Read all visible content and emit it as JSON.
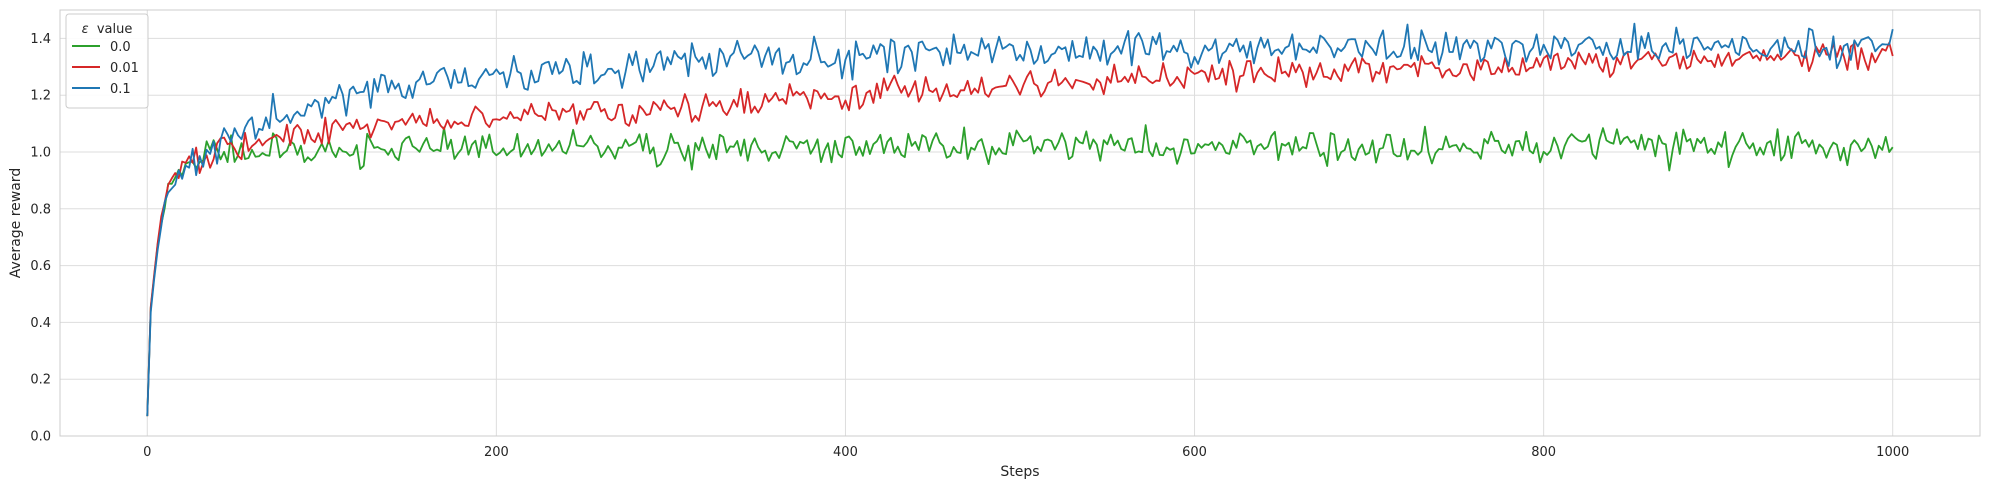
{
  "chart_data": {
    "type": "line",
    "title": "",
    "xlabel": "Steps",
    "ylabel": "Average reward",
    "xlim": [
      -50,
      1050
    ],
    "ylim": [
      0.0,
      1.5
    ],
    "x_ticks": [
      0,
      200,
      400,
      600,
      800,
      1000
    ],
    "x_tick_labels": [
      "0",
      "200",
      "400",
      "600",
      "800",
      "1000"
    ],
    "y_ticks": [
      0.0,
      0.2,
      0.4,
      0.6,
      0.8,
      1.0,
      1.2,
      1.4
    ],
    "y_tick_labels": [
      "0.0",
      "0.2",
      "0.4",
      "0.6",
      "0.8",
      "1.0",
      "1.2",
      "1.4"
    ],
    "grid": true,
    "legend": {
      "title_symbol": "ε",
      "title_text": "value",
      "placement": "top-left"
    },
    "x_range": [
      0,
      1000
    ],
    "series": [
      {
        "name": "0.0",
        "color": "#2ca02c",
        "points": [
          [
            0,
            0.07
          ],
          [
            2,
            0.45
          ],
          [
            5,
            0.62
          ],
          [
            8,
            0.76
          ],
          [
            12,
            0.86
          ],
          [
            16,
            0.92
          ],
          [
            20,
            0.95
          ],
          [
            30,
            0.98
          ],
          [
            40,
            1.0
          ],
          [
            60,
            1.0
          ],
          [
            100,
            1.01
          ],
          [
            200,
            1.01
          ],
          [
            400,
            1.02
          ],
          [
            600,
            1.02
          ],
          [
            800,
            1.02
          ],
          [
            1000,
            1.02
          ]
        ],
        "noise_amplitude": 0.03
      },
      {
        "name": "0.01",
        "color": "#d62728",
        "points": [
          [
            0,
            0.07
          ],
          [
            2,
            0.45
          ],
          [
            5,
            0.62
          ],
          [
            8,
            0.78
          ],
          [
            12,
            0.87
          ],
          [
            16,
            0.92
          ],
          [
            20,
            0.95
          ],
          [
            30,
            0.98
          ],
          [
            40,
            1.0
          ],
          [
            60,
            1.03
          ],
          [
            100,
            1.07
          ],
          [
            150,
            1.1
          ],
          [
            200,
            1.12
          ],
          [
            300,
            1.16
          ],
          [
            400,
            1.2
          ],
          [
            500,
            1.24
          ],
          [
            600,
            1.27
          ],
          [
            700,
            1.29
          ],
          [
            800,
            1.31
          ],
          [
            900,
            1.33
          ],
          [
            1000,
            1.34
          ]
        ],
        "noise_amplitude": 0.025
      },
      {
        "name": "0.1",
        "color": "#1f77b4",
        "points": [
          [
            0,
            0.07
          ],
          [
            2,
            0.44
          ],
          [
            5,
            0.6
          ],
          [
            8,
            0.74
          ],
          [
            12,
            0.85
          ],
          [
            16,
            0.9
          ],
          [
            20,
            0.93
          ],
          [
            30,
            0.98
          ],
          [
            40,
            1.02
          ],
          [
            60,
            1.09
          ],
          [
            80,
            1.14
          ],
          [
            100,
            1.18
          ],
          [
            150,
            1.24
          ],
          [
            200,
            1.28
          ],
          [
            300,
            1.32
          ],
          [
            400,
            1.34
          ],
          [
            500,
            1.35
          ],
          [
            600,
            1.36
          ],
          [
            800,
            1.37
          ],
          [
            1000,
            1.37
          ]
        ],
        "noise_amplitude": 0.032
      }
    ]
  }
}
